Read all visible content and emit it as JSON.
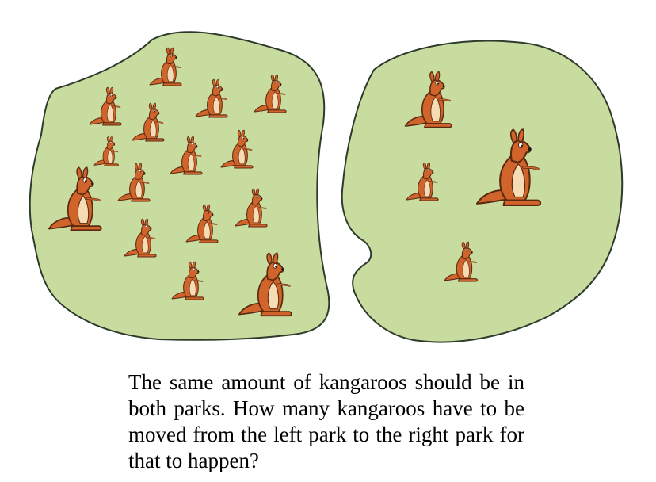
{
  "question": "The same amount of kangaroos should be in both parks. How many kangaroos have to be moved from the left park to the right park for that to happen?",
  "colors": {
    "park_fill": "#c9dca0",
    "park_outline": "#2e3b2a",
    "kangaroo_body": "#d0642a",
    "kangaroo_belly": "#f6dcb4",
    "kangaroo_outline": "#5a2a10"
  },
  "parks": {
    "left": {
      "kangaroo_count": 15,
      "icon": "kangaroo-icon"
    },
    "right": {
      "kangaroo_count": 4,
      "icon": "kangaroo-icon"
    }
  }
}
